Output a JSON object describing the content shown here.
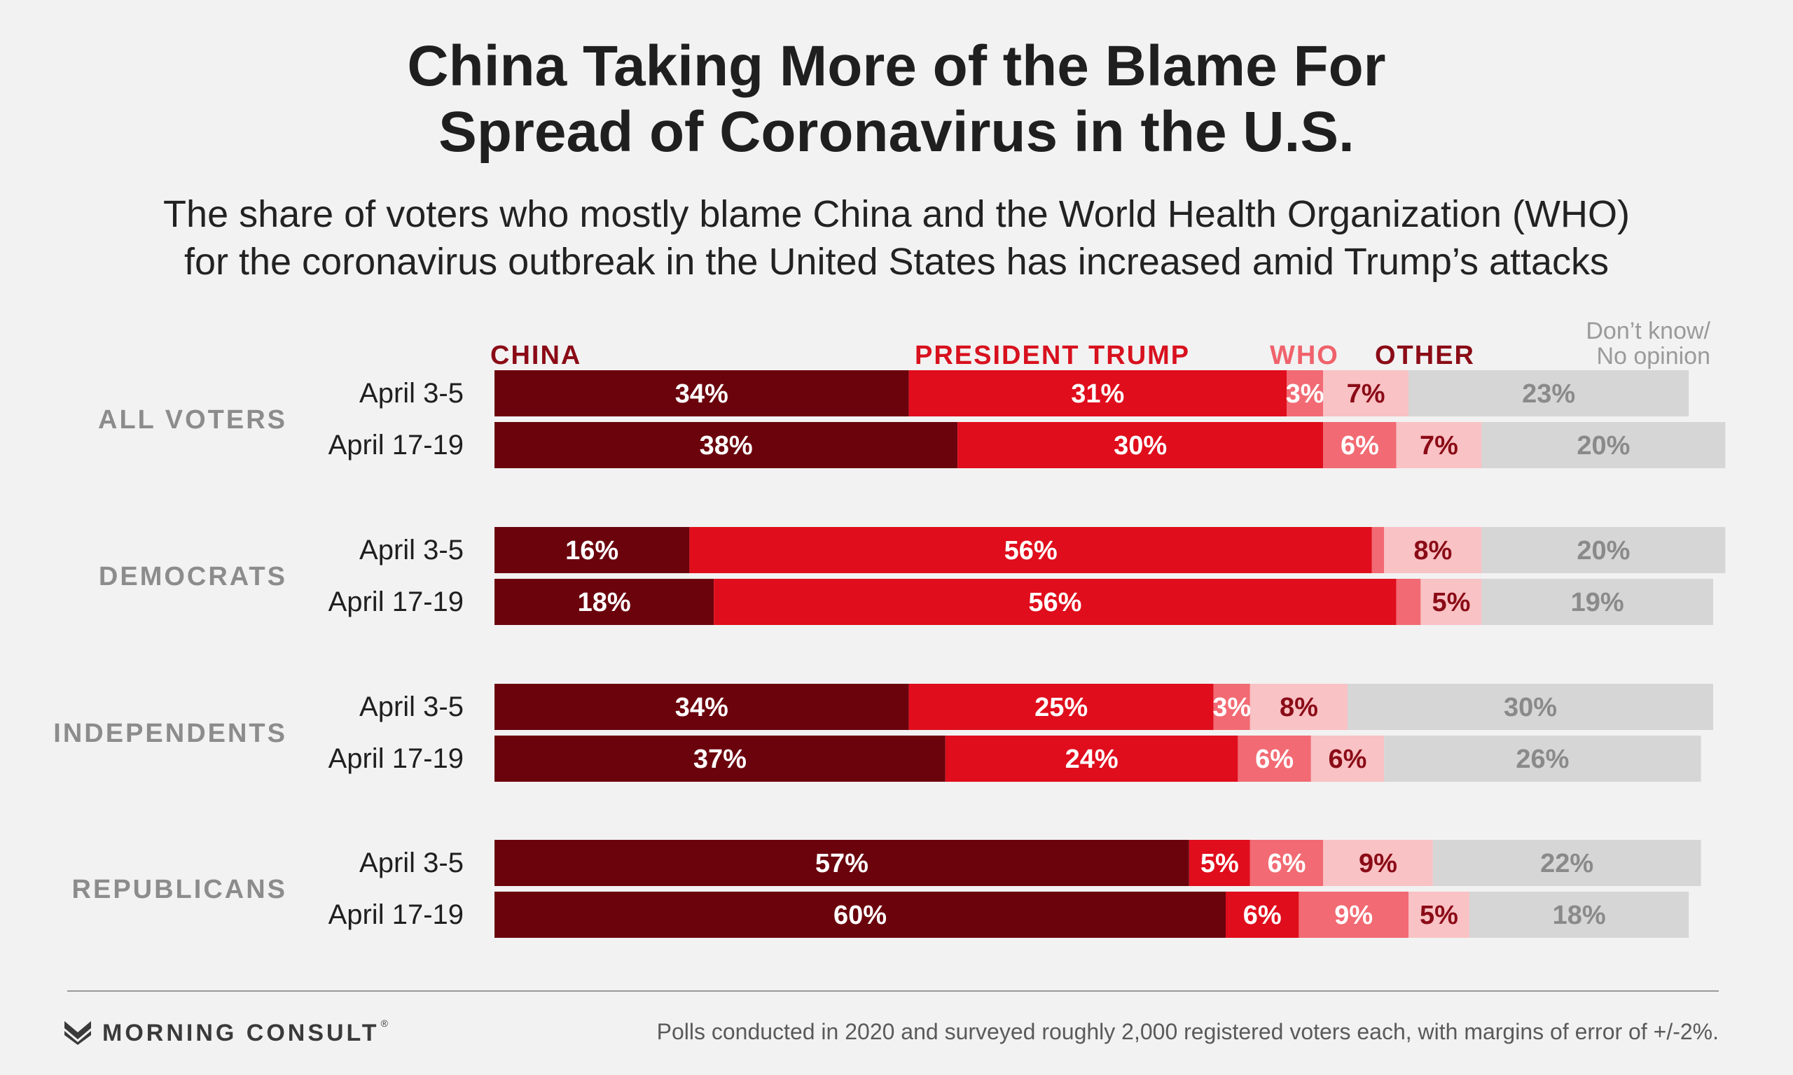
{
  "title": {
    "line1": "China Taking More of the Blame For",
    "line2": "Spread of Coronavirus in the U.S."
  },
  "subtitle": {
    "line1": "The share of voters who mostly blame China and the World Health Organization (WHO)",
    "line2": "for the coronavirus outbreak in the United States has increased amid Trump’s attacks"
  },
  "colors": {
    "china": "#6b030d",
    "trump": "#e00d1c",
    "who": "#f26a73",
    "other": "#f9c2c5",
    "dont_know": "#d6d6d6",
    "label_china": "#8a0b16",
    "label_trump": "#d8111e",
    "label_who": "#f0626b",
    "label_other": "#8a0b16",
    "label_dk": "#9a9a9a",
    "group_label": "#8c8c8c"
  },
  "chart_data": {
    "type": "bar",
    "stacked": true,
    "orientation": "horizontal",
    "xlim": [
      0,
      100
    ],
    "unit": "%",
    "segments": [
      {
        "key": "china",
        "name": "CHINA"
      },
      {
        "key": "trump",
        "name": "PRESIDENT TRUMP"
      },
      {
        "key": "who",
        "name": "WHO"
      },
      {
        "key": "other",
        "name": "OTHER"
      },
      {
        "key": "dont_know",
        "name_line1": "Don’t know/",
        "name_line2": "No opinion"
      }
    ],
    "groups": [
      {
        "name": "ALL VOTERS",
        "rows": [
          {
            "label": "April 3-5",
            "values": [
              34,
              31,
              3,
              7,
              23
            ]
          },
          {
            "label": "April 17-19",
            "values": [
              38,
              30,
              6,
              7,
              20
            ]
          }
        ]
      },
      {
        "name": "DEMOCRATS",
        "rows": [
          {
            "label": "April 3-5",
            "values": [
              16,
              56,
              1,
              8,
              20
            ],
            "show": [
              true,
              true,
              false,
              true,
              true
            ]
          },
          {
            "label": "April 17-19",
            "values": [
              18,
              56,
              2,
              5,
              19
            ],
            "show": [
              true,
              true,
              false,
              true,
              true
            ]
          }
        ]
      },
      {
        "name": "INDEPENDENTS",
        "rows": [
          {
            "label": "April 3-5",
            "values": [
              34,
              25,
              3,
              8,
              30
            ]
          },
          {
            "label": "April 17-19",
            "values": [
              37,
              24,
              6,
              6,
              26
            ]
          }
        ]
      },
      {
        "name": "REPUBLICANS",
        "rows": [
          {
            "label": "April 3-5",
            "values": [
              57,
              5,
              6,
              9,
              22
            ]
          },
          {
            "label": "April 17-19",
            "values": [
              60,
              6,
              9,
              5,
              18
            ]
          }
        ]
      }
    ]
  },
  "footer": {
    "brand": "MORNING CONSULT",
    "trademark": "®",
    "note": "Polls conducted in 2020 and surveyed roughly 2,000 registered voters each, with margins of error of +/-2%."
  }
}
